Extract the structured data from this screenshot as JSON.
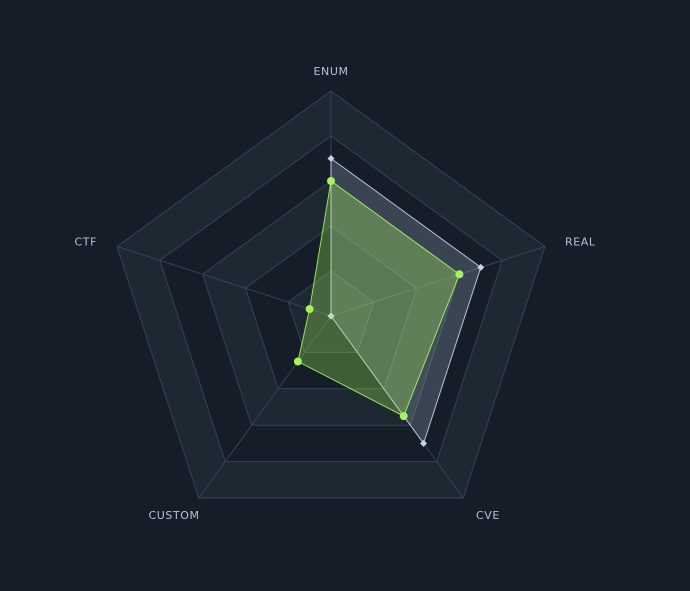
{
  "chart_data": {
    "type": "radar",
    "axes": [
      "ENUM",
      "REAL",
      "CVE",
      "CUSTOM",
      "CTF"
    ],
    "range": [
      0,
      100
    ],
    "grid_levels": 5,
    "grid_band_style": "alternating",
    "legend": "none",
    "series": [
      {
        "values": [
          70,
          70,
          70,
          0,
          0
        ],
        "color": "#c5d3ea",
        "marker": "diamond"
      },
      {
        "values": [
          60,
          60,
          55,
          25,
          10
        ],
        "color": "#a4f55a",
        "marker": "circle"
      }
    ]
  },
  "colors": {
    "background": "#141d28",
    "grid_band_light": "#1e2833",
    "grid_band_dark": "#141d28",
    "grid_line": "#364350",
    "axis_label": "#b8c2cf"
  }
}
